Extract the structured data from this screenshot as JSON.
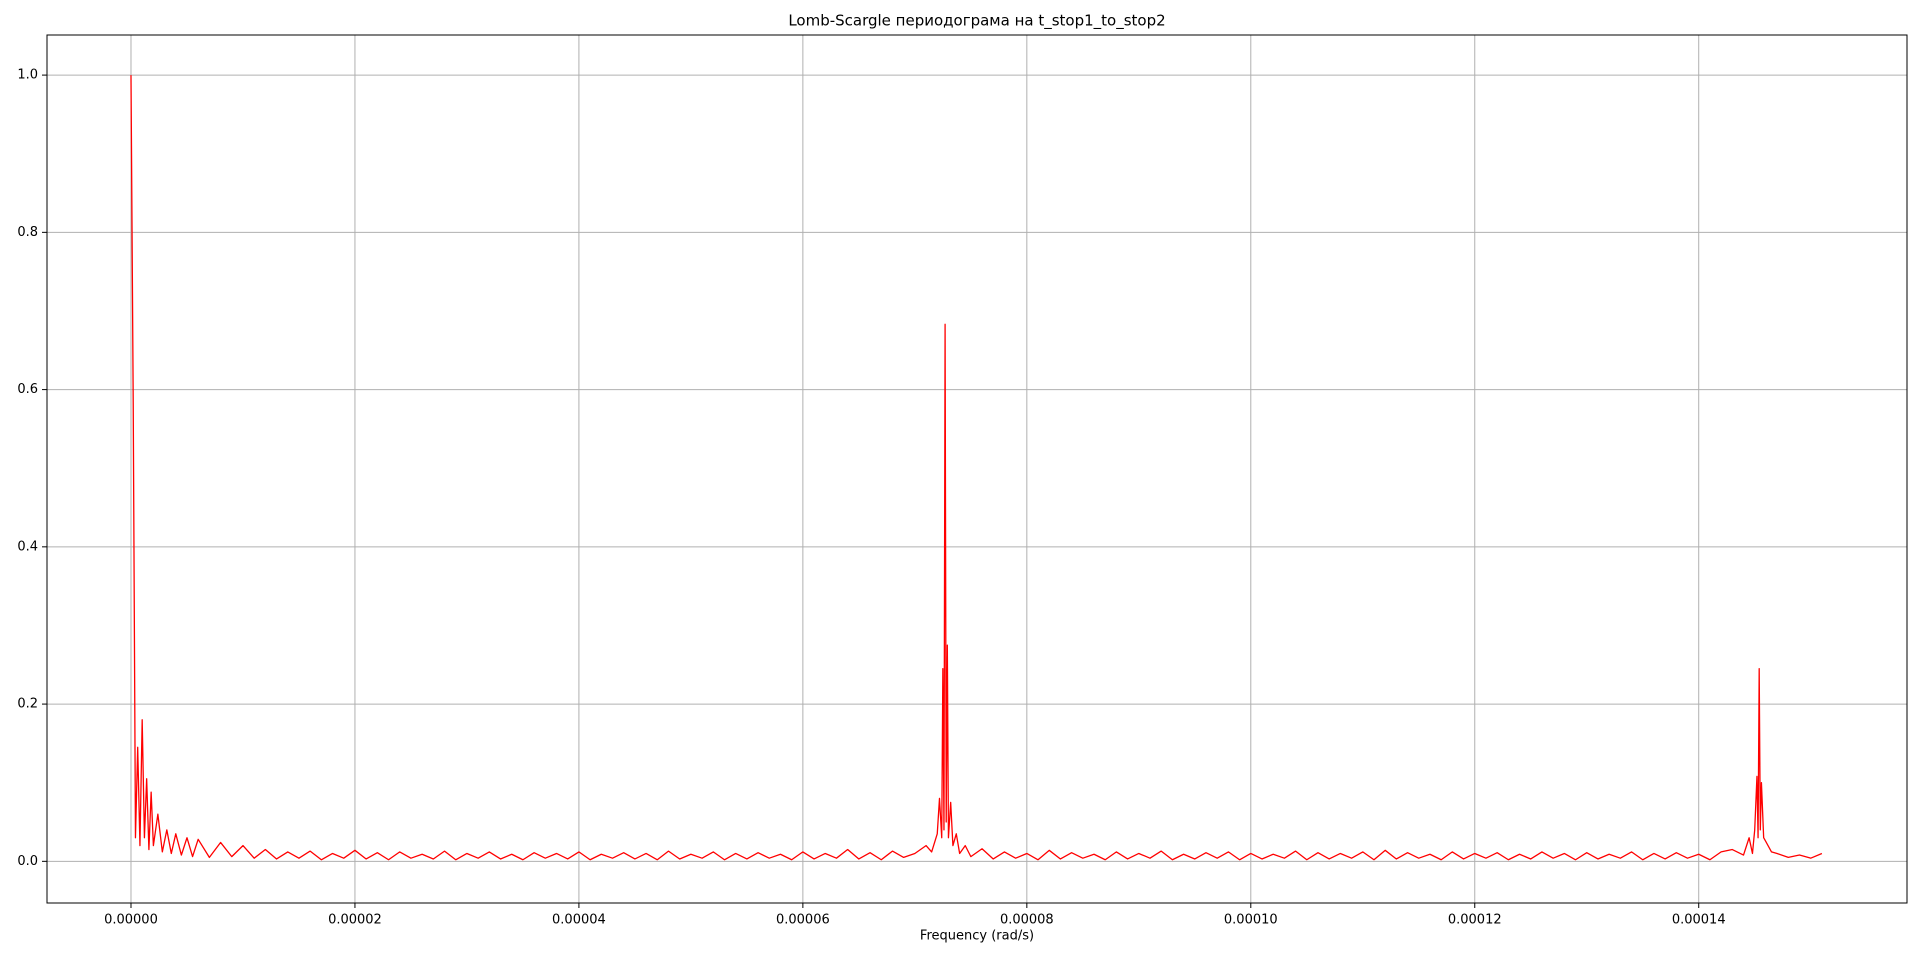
{
  "chart_data": {
    "type": "line",
    "title": "Lomb-Scargle периодограма на t_stop1_to_stop2",
    "x_label": "Frequency (rad/s)",
    "color": "#ff0000",
    "grid": true,
    "xlim": [
      -7.5e-06,
      0.0001586
    ],
    "ylim": [
      -0.053,
      1.051
    ],
    "xticks": [
      {
        "value": 0,
        "label": "0.00000"
      },
      {
        "value": 2e-05,
        "label": "0.00002"
      },
      {
        "value": 4e-05,
        "label": "0.00004"
      },
      {
        "value": 6e-05,
        "label": "0.00006"
      },
      {
        "value": 8e-05,
        "label": "0.00008"
      },
      {
        "value": 0.0001,
        "label": "0.00010"
      },
      {
        "value": 0.00012,
        "label": "0.00012"
      },
      {
        "value": 0.00014,
        "label": "0.00014"
      }
    ],
    "yticks": [
      {
        "value": 0,
        "label": "0.0"
      },
      0.2,
      0.4,
      0.6,
      0.8,
      {
        "value": 1,
        "label": "1.0"
      }
    ],
    "x": [
      0,
      2e-07,
      4e-07,
      6e-07,
      8e-07,
      1e-06,
      1.2e-06,
      1.4e-06,
      1.6e-06,
      1.8e-06,
      2e-06,
      2.4e-06,
      2.8e-06,
      3.2e-06,
      3.6e-06,
      4e-06,
      4.5e-06,
      5e-06,
      5.5e-06,
      6e-06,
      7e-06,
      8e-06,
      9e-06,
      1e-05,
      1.1e-05,
      1.2e-05,
      1.3e-05,
      1.4e-05,
      1.5e-05,
      1.6e-05,
      1.7e-05,
      1.8e-05,
      1.9e-05,
      2e-05,
      2.1e-05,
      2.2e-05,
      2.3e-05,
      2.4e-05,
      2.5e-05,
      2.6e-05,
      2.7e-05,
      2.8e-05,
      2.9e-05,
      3e-05,
      3.1e-05,
      3.2e-05,
      3.3e-05,
      3.4e-05,
      3.5e-05,
      3.6e-05,
      3.7e-05,
      3.8e-05,
      3.9e-05,
      4e-05,
      4.1e-05,
      4.2e-05,
      4.3e-05,
      4.4e-05,
      4.5e-05,
      4.6e-05,
      4.7e-05,
      4.8e-05,
      4.9e-05,
      5e-05,
      5.1e-05,
      5.2e-05,
      5.3e-05,
      5.4e-05,
      5.5e-05,
      5.6e-05,
      5.7e-05,
      5.8e-05,
      5.9e-05,
      6e-05,
      6.1e-05,
      6.2e-05,
      6.3e-05,
      6.4e-05,
      6.5e-05,
      6.6e-05,
      6.7e-05,
      6.8e-05,
      6.9e-05,
      7e-05,
      7.1e-05,
      7.15e-05,
      7.2e-05,
      7.22e-05,
      7.24e-05,
      7.25e-05,
      7.26e-05,
      7.27e-05,
      7.28e-05,
      7.29e-05,
      7.3e-05,
      7.32e-05,
      7.34e-05,
      7.37e-05,
      7.4e-05,
      7.45e-05,
      7.5e-05,
      7.6e-05,
      7.7e-05,
      7.8e-05,
      7.9e-05,
      8e-05,
      8.1e-05,
      8.2e-05,
      8.3e-05,
      8.4e-05,
      8.5e-05,
      8.6e-05,
      8.7e-05,
      8.8e-05,
      8.9e-05,
      9e-05,
      9.1e-05,
      9.2e-05,
      9.3e-05,
      9.4e-05,
      9.5e-05,
      9.6e-05,
      9.7e-05,
      9.8e-05,
      9.9e-05,
      0.0001,
      0.000101,
      0.000102,
      0.000103,
      0.000104,
      0.000105,
      0.000106,
      0.000107,
      0.000108,
      0.000109,
      0.00011,
      0.000111,
      0.000112,
      0.000113,
      0.000114,
      0.000115,
      0.000116,
      0.000117,
      0.000118,
      0.000119,
      0.00012,
      0.000121,
      0.000122,
      0.000123,
      0.000124,
      0.000125,
      0.000126,
      0.000127,
      0.000128,
      0.000129,
      0.00013,
      0.000131,
      0.000132,
      0.000133,
      0.000134,
      0.000135,
      0.000136,
      0.000137,
      0.000138,
      0.000139,
      0.00014,
      0.000141,
      0.000142,
      0.000143,
      0.000144,
      0.0001445,
      0.0001448,
      0.000145,
      0.0001452,
      0.0001453,
      0.0001454,
      0.0001455,
      0.0001456,
      0.0001458,
      0.000146,
      0.0001465,
      0.000147,
      0.000148,
      0.000149,
      0.00015,
      0.000151
    ],
    "values": [
      1.0,
      0.58,
      0.03,
      0.145,
      0.02,
      0.18,
      0.03,
      0.105,
      0.015,
      0.088,
      0.02,
      0.06,
      0.012,
      0.04,
      0.01,
      0.035,
      0.008,
      0.03,
      0.006,
      0.028,
      0.005,
      0.024,
      0.006,
      0.02,
      0.004,
      0.015,
      0.003,
      0.012,
      0.004,
      0.013,
      0.002,
      0.01,
      0.004,
      0.014,
      0.003,
      0.011,
      0.002,
      0.012,
      0.004,
      0.009,
      0.003,
      0.013,
      0.002,
      0.01,
      0.004,
      0.012,
      0.003,
      0.009,
      0.002,
      0.011,
      0.004,
      0.01,
      0.003,
      0.012,
      0.002,
      0.009,
      0.004,
      0.011,
      0.003,
      0.01,
      0.002,
      0.013,
      0.003,
      0.009,
      0.004,
      0.012,
      0.002,
      0.01,
      0.003,
      0.011,
      0.004,
      0.009,
      0.002,
      0.012,
      0.003,
      0.01,
      0.004,
      0.015,
      0.003,
      0.011,
      0.002,
      0.013,
      0.005,
      0.01,
      0.02,
      0.012,
      0.035,
      0.08,
      0.03,
      0.245,
      0.04,
      0.683,
      0.05,
      0.275,
      0.03,
      0.075,
      0.02,
      0.035,
      0.01,
      0.02,
      0.006,
      0.016,
      0.003,
      0.012,
      0.004,
      0.01,
      0.002,
      0.014,
      0.003,
      0.011,
      0.004,
      0.009,
      0.002,
      0.012,
      0.003,
      0.01,
      0.004,
      0.013,
      0.002,
      0.009,
      0.003,
      0.011,
      0.004,
      0.012,
      0.002,
      0.01,
      0.003,
      0.009,
      0.004,
      0.013,
      0.002,
      0.011,
      0.003,
      0.01,
      0.004,
      0.012,
      0.002,
      0.014,
      0.003,
      0.011,
      0.004,
      0.009,
      0.002,
      0.012,
      0.003,
      0.01,
      0.004,
      0.011,
      0.002,
      0.009,
      0.003,
      0.012,
      0.004,
      0.01,
      0.002,
      0.011,
      0.003,
      0.009,
      0.004,
      0.012,
      0.002,
      0.01,
      0.003,
      0.011,
      0.004,
      0.009,
      0.002,
      0.012,
      0.015,
      0.008,
      0.03,
      0.01,
      0.04,
      0.108,
      0.03,
      0.245,
      0.04,
      0.1,
      0.03,
      0.025,
      0.012,
      0.01,
      0.005,
      0.008,
      0.004,
      0.01
    ]
  }
}
